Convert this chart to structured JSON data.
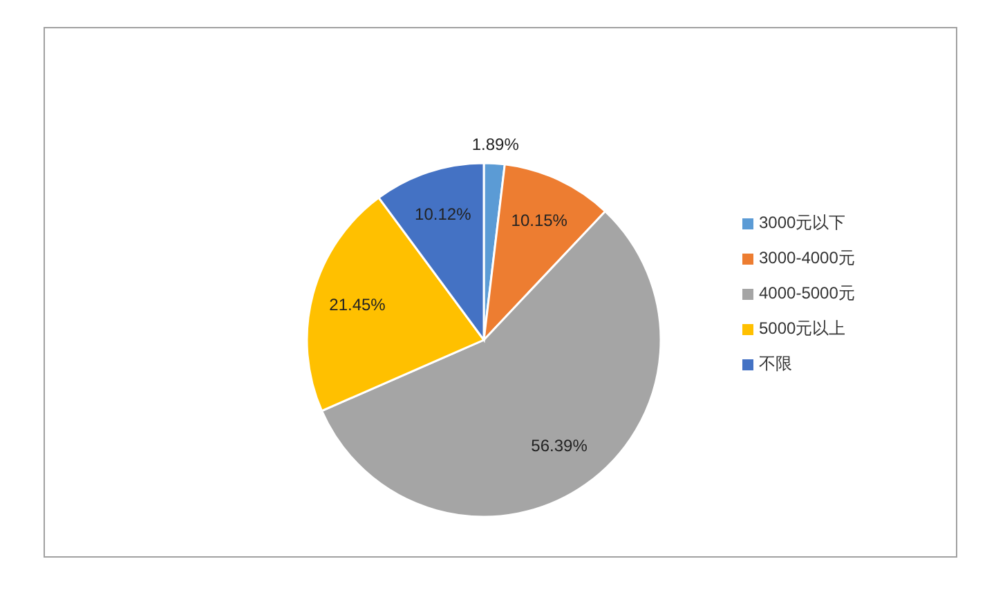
{
  "chart_data": {
    "type": "pie",
    "categories": [
      "3000元以下",
      "3000-4000元",
      "4000-5000元",
      "5000元以上",
      "不限"
    ],
    "values": [
      1.89,
      10.15,
      56.39,
      21.45,
      10.12
    ],
    "colors": [
      "#5b9bd5",
      "#ed7d31",
      "#a5a5a5",
      "#ffc000",
      "#4472c4"
    ],
    "value_labels": [
      "1.89%",
      "10.15%",
      "56.39%",
      "21.45%",
      "10.12%"
    ],
    "legend": "right"
  }
}
